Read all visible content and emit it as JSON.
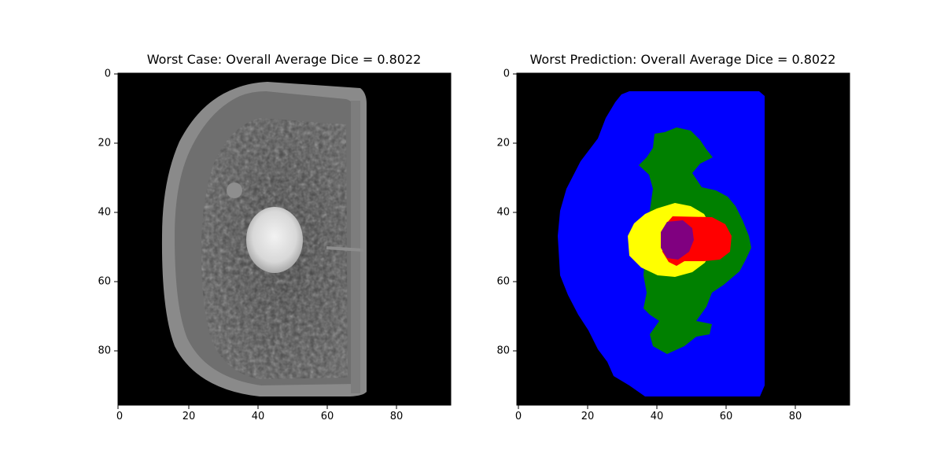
{
  "panels": [
    {
      "title": "Worst Case: Overall Average Dice = 0.8022",
      "x_ticks": [
        "0",
        "20",
        "40",
        "60",
        "80"
      ],
      "y_ticks": [
        "0",
        "20",
        "40",
        "60",
        "80"
      ],
      "image_type": "grayscale-mri-slice"
    },
    {
      "title": "Worst Prediction: Overall Average Dice = 0.8022",
      "x_ticks": [
        "0",
        "20",
        "40",
        "60",
        "80"
      ],
      "y_ticks": [
        "0",
        "20",
        "40",
        "60",
        "80"
      ],
      "image_type": "segmentation-mask",
      "colors": {
        "background": "#000000",
        "region_1": "#0000ff",
        "region_2": "#008000",
        "region_3": "#ffff00",
        "region_4": "#ff0000",
        "region_5": "#800080"
      }
    }
  ]
}
